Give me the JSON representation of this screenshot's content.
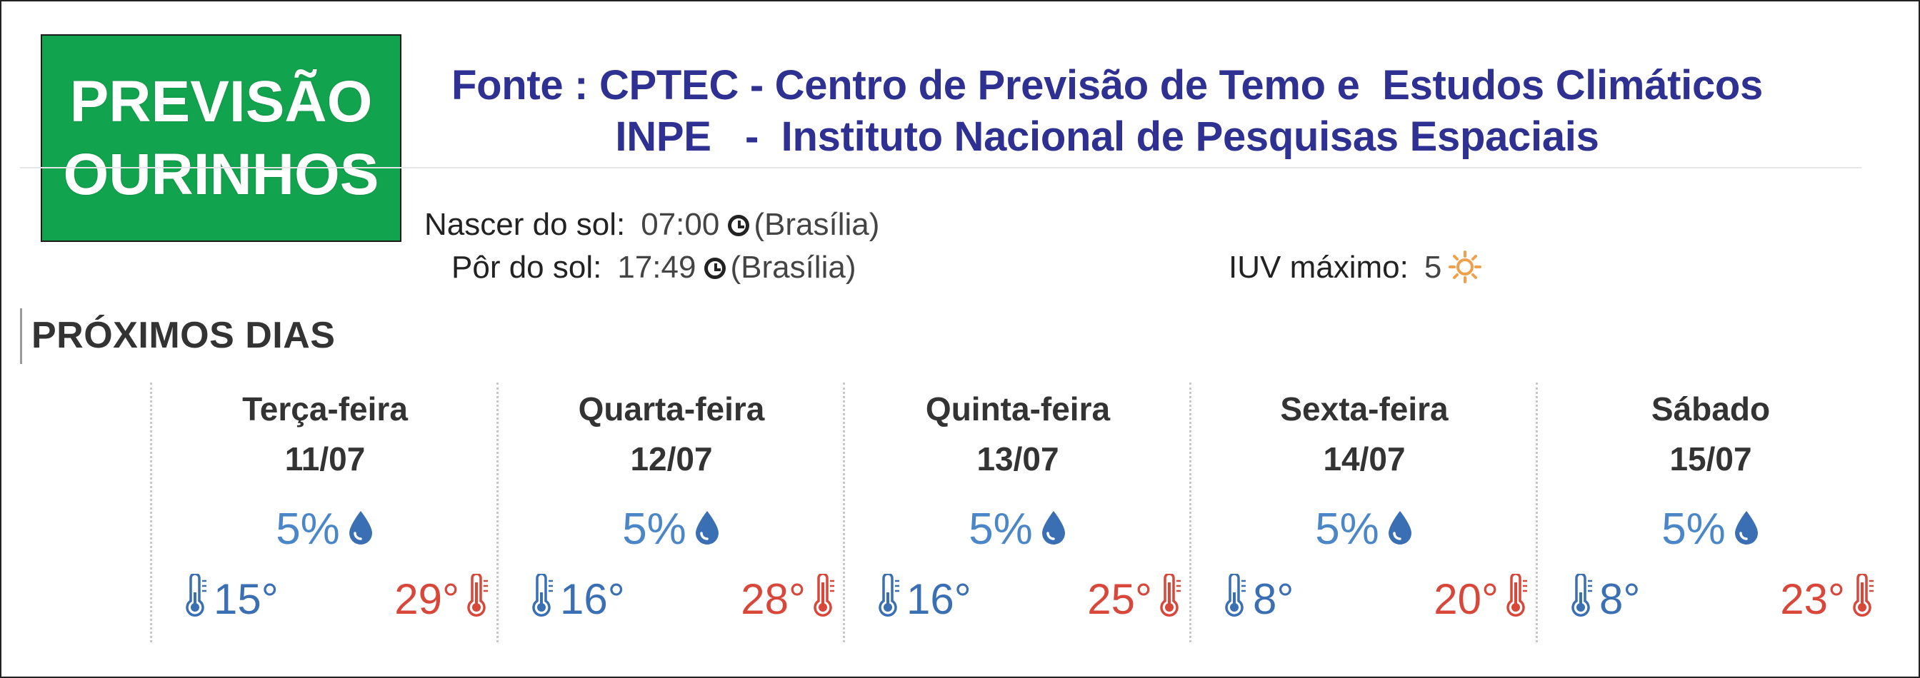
{
  "badge": {
    "line1": "PREVISÃO",
    "line2": "OURINHOS",
    "bg_color": "#12a34e"
  },
  "source": {
    "line1": "Fonte : CPTEC - Centro de Previsão de Temo e  Estudos Climáticos",
    "line2": "INPE   -  Instituto Nacional de Pesquisas Espaciais",
    "color": "#2e3192"
  },
  "sun": {
    "sunrise_label": "Nascer do sol:",
    "sunrise_time": "07:00",
    "sunrise_tz": "(Brasília)",
    "sunset_label": "Pôr do sol:",
    "sunset_time": "17:49",
    "sunset_tz": "(Brasília)"
  },
  "uv": {
    "label": "IUV máximo:",
    "value": "5",
    "icon": "sun-icon",
    "color": "#f0a04b"
  },
  "section": {
    "title": "PRÓXIMOS DIAS"
  },
  "days": [
    {
      "name": "Terça-feira",
      "date": "11/07",
      "rain": "5%",
      "min": "15°",
      "max": "29°"
    },
    {
      "name": "Quarta-feira",
      "date": "12/07",
      "rain": "5%",
      "min": "16°",
      "max": "28°"
    },
    {
      "name": "Quinta-feira",
      "date": "13/07",
      "rain": "5%",
      "min": "16°",
      "max": "25°"
    },
    {
      "name": "Sexta-feira",
      "date": "14/07",
      "rain": "5%",
      "min": "8°",
      "max": "20°"
    },
    {
      "name": "Sábado",
      "date": "15/07",
      "rain": "5%",
      "min": "8°",
      "max": "23°"
    }
  ],
  "colors": {
    "min_temp": "#3a6fb4",
    "max_temp": "#d9473b",
    "rain": "#4a86c8"
  }
}
